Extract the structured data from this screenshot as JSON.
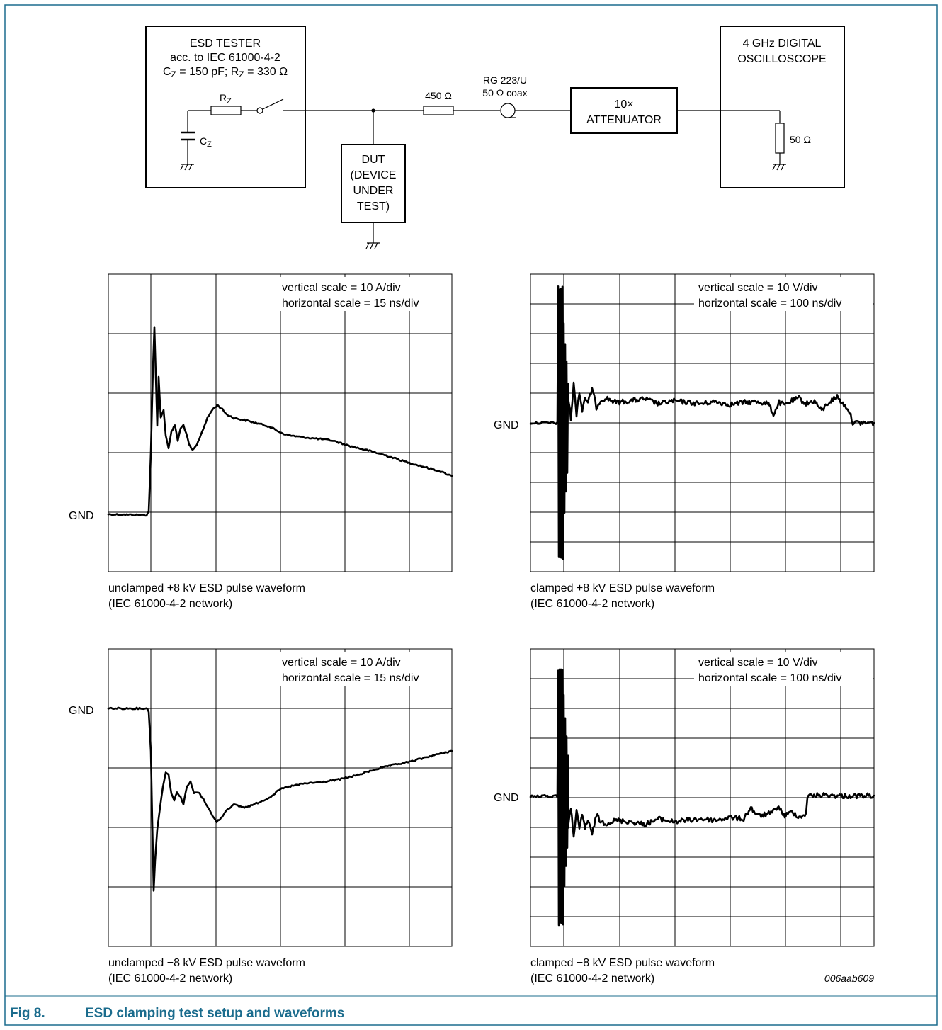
{
  "setup": {
    "esd_tester": {
      "title": "ESD TESTER",
      "standard": "acc. to IEC 61000-4-2",
      "cz_label": "C",
      "cz_sub": "Z",
      "cz_value": " = 150 pF; R",
      "rz_sub": "Z",
      "rz_value": " = 330 Ω",
      "resistor_label": "R",
      "resistor_sub": "Z",
      "capacitor_label": "C",
      "capacitor_sub": "Z"
    },
    "resistor_450": "450 Ω",
    "coax_type": "RG 223/U",
    "coax_spec": "50 Ω coax",
    "dut": [
      "DUT",
      "(DEVICE",
      "UNDER",
      "TEST)"
    ],
    "attenuator": [
      "10×",
      "ATTENUATOR"
    ],
    "oscilloscope": [
      "4 GHz DIGITAL",
      "OSCILLOSCOPE"
    ],
    "scope_load": "50 Ω"
  },
  "waveforms": [
    {
      "id": "unclamped-pos",
      "gnd_label": "GND",
      "scale_vertical": "vertical scale = 10 A/div",
      "scale_horizontal": "horizontal scale = 15 ns/div",
      "caption_line1": "unclamped +8 kV ESD pulse waveform",
      "caption_line2": "(IEC 61000-4-2 network)"
    },
    {
      "id": "clamped-pos",
      "gnd_label": "GND",
      "scale_vertical": "vertical scale = 10 V/div",
      "scale_horizontal": "horizontal scale = 100 ns/div",
      "caption_line1": "clamped +8 kV ESD pulse waveform",
      "caption_line2": "(IEC 61000-4-2 network)"
    },
    {
      "id": "unclamped-neg",
      "gnd_label": "GND",
      "scale_vertical": "vertical scale = 10 A/div",
      "scale_horizontal": "horizontal scale = 15 ns/div",
      "caption_line1": "unclamped −8 kV ESD pulse waveform",
      "caption_line2": "(IEC 61000-4-2 network)"
    },
    {
      "id": "clamped-neg",
      "gnd_label": "GND",
      "scale_vertical": "vertical scale = 10 V/div",
      "scale_horizontal": "horizontal scale = 100 ns/div",
      "caption_line1": "clamped −8 kV ESD pulse waveform",
      "caption_line2": "(IEC 61000-4-2 network)"
    }
  ],
  "figure_id": "006aab609",
  "caption": {
    "number": "Fig 8.",
    "title": "ESD clamping test setup and waveforms"
  },
  "colors": {
    "frame": "#1b6c8d",
    "caption": "#1b6c8d",
    "ink": "#000000"
  }
}
